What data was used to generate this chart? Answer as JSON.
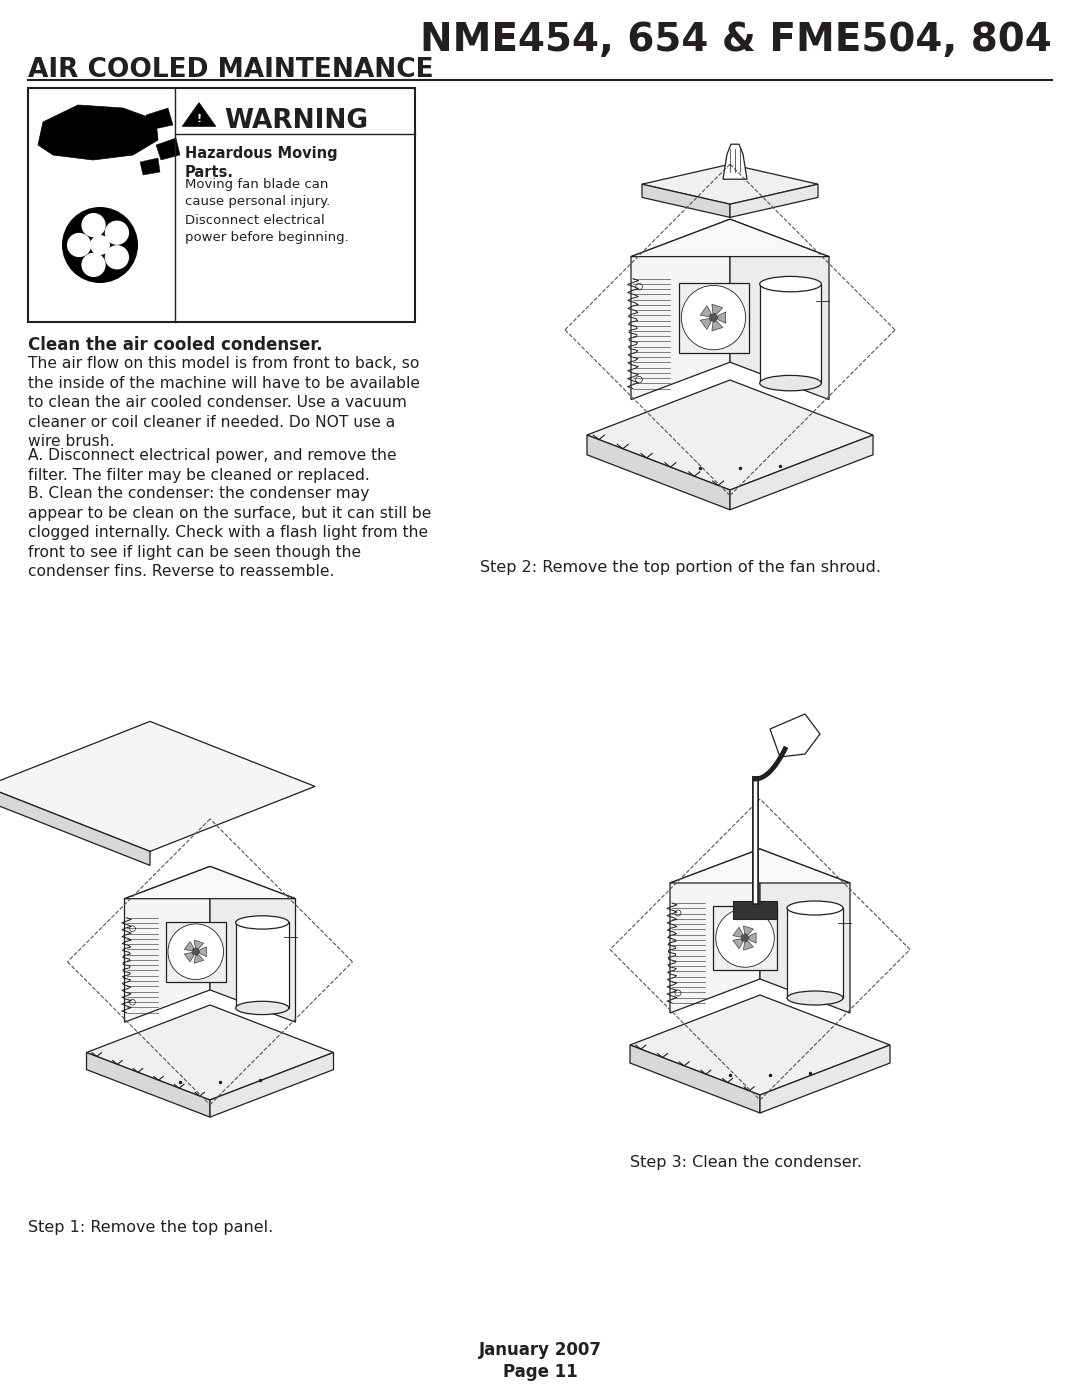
{
  "title": "NME454, 654 & FME504, 804",
  "section_title": "AIR COOLED MAINTENANCE",
  "warning_bold": "Hazardous Moving\nParts.",
  "warning_text1": "Moving fan blade can\ncause personal injury.",
  "warning_text2": "Disconnect electrical\npower before beginning.",
  "clean_title": "Clean the air cooled condenser.",
  "clean_para1": "The air flow on this model is from front to back, so\nthe inside of the machine will have to be available\nto clean the air cooled condenser. Use a vacuum\ncleaner or coil cleaner if needed. Do NOT use a\nwire brush.",
  "clean_para2": "A. Disconnect electrical power, and remove the\nfilter. The filter may be cleaned or replaced.",
  "clean_para3": "B. Clean the condenser: the condenser may\nappear to be clean on the surface, but it can still be\nclogged internally. Check with a flash light from the\nfront to see if light can be seen though the\ncondenser fins. Reverse to reassemble.",
  "step2_caption": "Step 2: Remove the top portion of the fan shroud.",
  "step1_caption": "Step 1: Remove the top panel.",
  "step3_caption": "Step 3: Clean the condenser.",
  "footer_line1": "January 2007",
  "footer_line2": "Page 11",
  "bg_color": "#ffffff",
  "text_color": "#231f20",
  "line_color": "#231f20",
  "title_fontsize": 28,
  "section_fontsize": 19,
  "body_fontsize": 11.2,
  "caption_fontsize": 11.5,
  "warning_fontsize": 19
}
